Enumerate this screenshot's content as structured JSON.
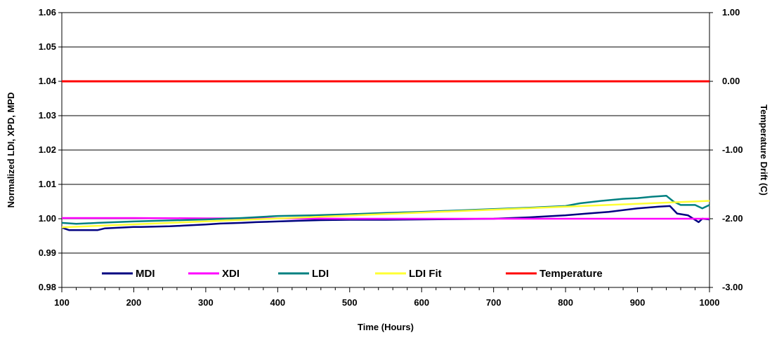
{
  "chart_data": {
    "type": "line",
    "title": "",
    "xlabel": "Time (Hours)",
    "ylabel": "Normalized LDI, XPD, MPD",
    "y2label": "Temperature Drift (C)",
    "xlim": [
      100,
      1000
    ],
    "ylim": [
      0.98,
      1.06
    ],
    "y2lim": [
      -3.0,
      1.0
    ],
    "grid": "horizontal",
    "legend": "bottom-inside",
    "x_ticks": [
      "100",
      "200",
      "300",
      "400",
      "500",
      "600",
      "700",
      "800",
      "900",
      "1000"
    ],
    "y_ticks": [
      "0.98",
      "0.99",
      "1.00",
      "1.01",
      "1.02",
      "1.03",
      "1.04",
      "1.05",
      "1.06"
    ],
    "y2_ticks": [
      "-3.00",
      "-2.00",
      "-1.00",
      "0.00",
      "1.00"
    ],
    "series": [
      {
        "name": "MDI",
        "color": "#000080",
        "axis": "left",
        "x": [
          100,
          110,
          150,
          160,
          200,
          210,
          250,
          270,
          300,
          320,
          350,
          370,
          400,
          430,
          460,
          500,
          550,
          600,
          650,
          700,
          750,
          800,
          830,
          860,
          900,
          930,
          945,
          955,
          970,
          985,
          990,
          1000
        ],
        "y": [
          0.9974,
          0.9967,
          0.9967,
          0.9972,
          0.9976,
          0.9976,
          0.9978,
          0.998,
          0.9983,
          0.9986,
          0.9988,
          0.999,
          0.9992,
          0.9994,
          0.9996,
          0.9997,
          0.9997,
          0.9998,
          0.9999,
          1.0,
          1.0004,
          1.001,
          1.0015,
          1.002,
          1.003,
          1.0035,
          1.0037,
          1.0015,
          1.001,
          0.999,
          1.0,
          0.9998
        ]
      },
      {
        "name": "XDI",
        "color": "#FF00FF",
        "axis": "left",
        "x": [
          100,
          200,
          300,
          400,
          500,
          600,
          700,
          800,
          900,
          1000
        ],
        "y": [
          1.0002,
          1.0002,
          1.0001,
          1.0001,
          1.0,
          1.0,
          1.0,
          1.0,
          1.0,
          1.0
        ]
      },
      {
        "name": "LDI",
        "color": "#008080",
        "axis": "left",
        "x": [
          100,
          120,
          150,
          200,
          250,
          300,
          350,
          400,
          450,
          500,
          550,
          600,
          650,
          700,
          750,
          800,
          820,
          850,
          880,
          900,
          920,
          940,
          950,
          960,
          980,
          990,
          1000
        ],
        "y": [
          0.9988,
          0.9985,
          0.9988,
          0.9992,
          0.9995,
          0.9998,
          1.0002,
          1.0008,
          1.001,
          1.0013,
          1.0017,
          1.002,
          1.0024,
          1.0028,
          1.0032,
          1.0037,
          1.0045,
          1.0052,
          1.0058,
          1.006,
          1.0064,
          1.0067,
          1.005,
          1.004,
          1.004,
          1.003,
          1.004
        ]
      },
      {
        "name": "LDI Fit",
        "color": "#FFFF33",
        "axis": "left",
        "x": [
          100,
          1000
        ],
        "y": [
          0.9975,
          1.0052
        ]
      },
      {
        "name": "Temperature",
        "color": "#FF0000",
        "axis": "right",
        "x": [
          100,
          1000
        ],
        "y": [
          0.0,
          0.0
        ]
      }
    ]
  }
}
